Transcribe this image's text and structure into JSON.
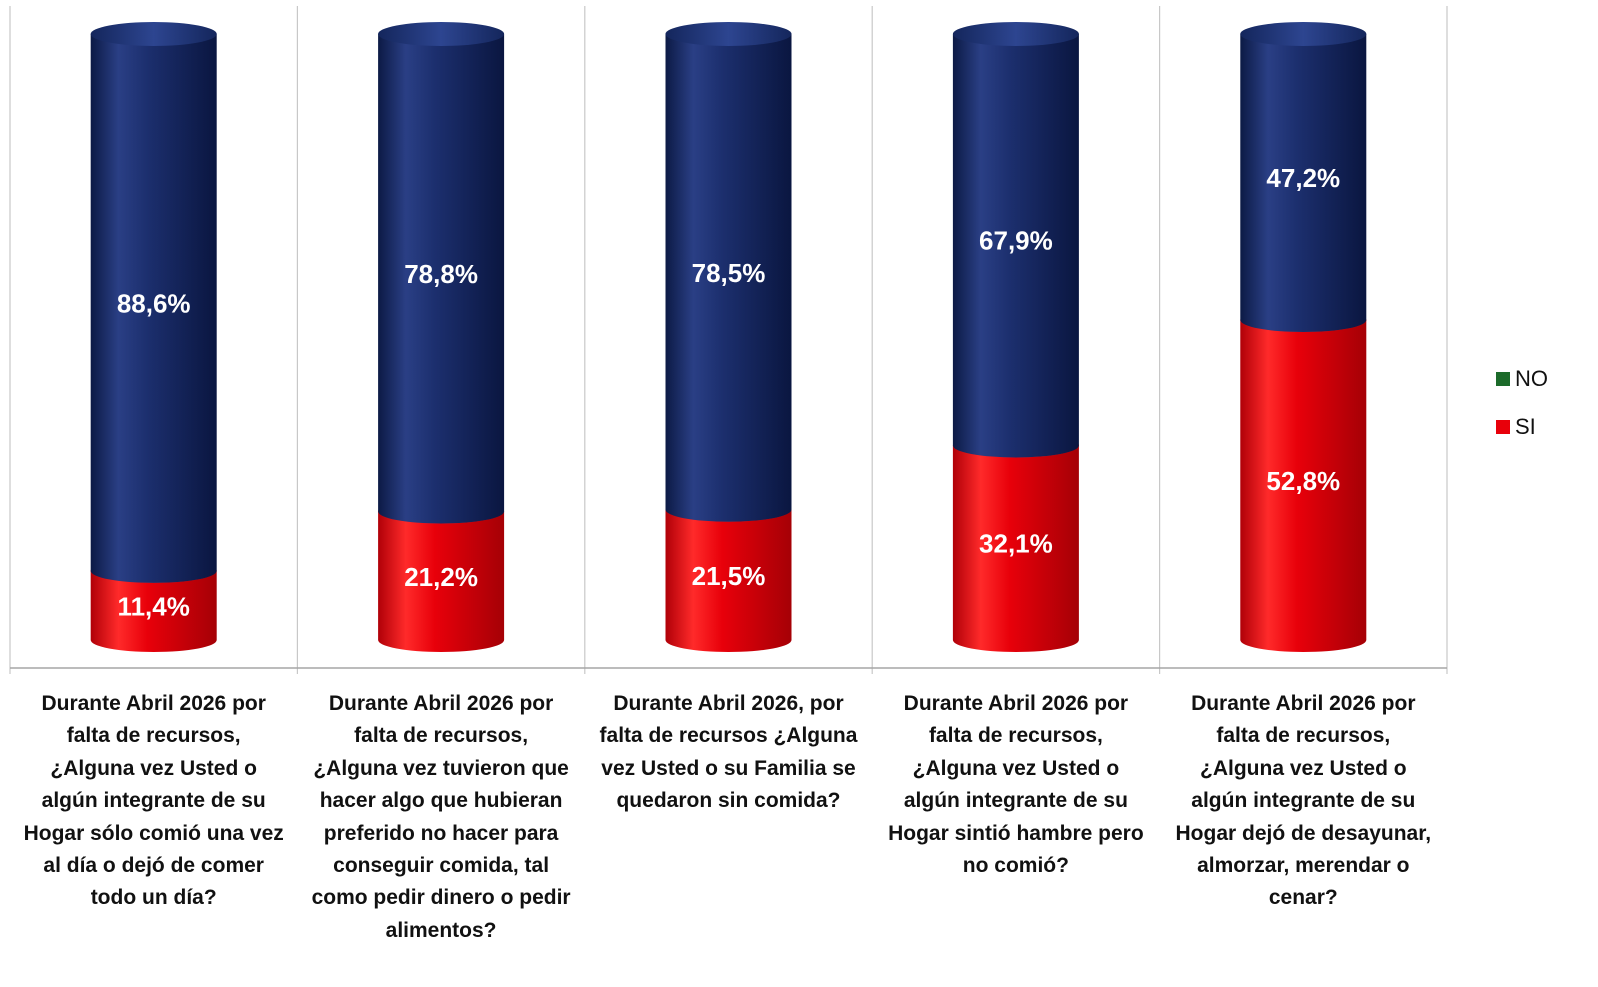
{
  "chart_data": {
    "type": "bar",
    "stacked": true,
    "categories": [
      "Durante Abril 2026 por falta de recursos, ¿Alguna vez Usted o algún integrante de su Hogar sólo comió una vez al día o dejó de comer todo un día?",
      "Durante Abril 2026 por falta de recursos, ¿Alguna vez tuvieron que hacer algo que hubieran preferido no hacer para conseguir comida, tal como pedir dinero o pedir alimentos?",
      "Durante Abril 2026, por falta de recursos ¿Alguna vez Usted o su Familia se quedaron sin comida?",
      "Durante Abril 2026 por falta de recursos, ¿Alguna vez Usted o algún integrante de su Hogar sintió hambre pero no comió?",
      "Durante Abril 2026 por falta de recursos, ¿Alguna vez Usted o algún integrante de su Hogar dejó de desayunar, almorzar, merendar o cenar?"
    ],
    "series": [
      {
        "name": "SI",
        "color": "#e8000a",
        "values": [
          11.4,
          21.2,
          21.5,
          32.1,
          52.8
        ],
        "labels": [
          "11,4%",
          "21,2%",
          "21,5%",
          "32,1%",
          "52,8%"
        ]
      },
      {
        "name": "NO",
        "color": "#1c2f6e",
        "values": [
          88.6,
          78.8,
          78.5,
          67.9,
          47.2
        ],
        "labels": [
          "88,6%",
          "78,8%",
          "78,5%",
          "67,9%",
          "47,2%"
        ]
      }
    ],
    "ylim": [
      0,
      100
    ],
    "legend_position": "right",
    "grid": false
  },
  "legend": [
    {
      "label": "NO",
      "color": "#1c6b2a"
    },
    {
      "label": "SI",
      "color": "#e8000a"
    }
  ]
}
